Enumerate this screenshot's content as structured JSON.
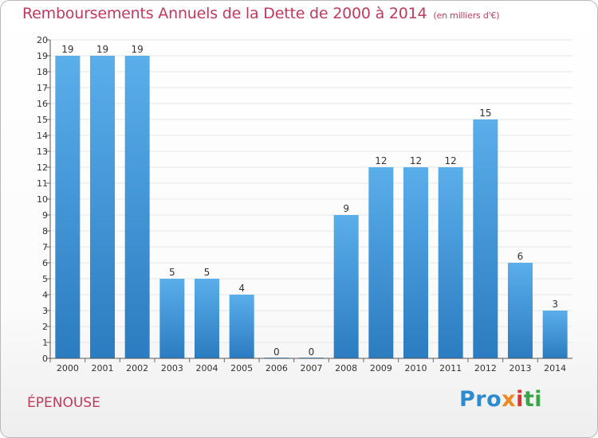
{
  "chart_data": {
    "type": "bar",
    "title": "Remboursements Annuels de la Dette de 2000 à 2014",
    "subtitle": "(en milliers d'€)",
    "categories": [
      "2000",
      "2001",
      "2002",
      "2003",
      "2004",
      "2005",
      "2006",
      "2007",
      "2008",
      "2009",
      "2010",
      "2011",
      "2012",
      "2013",
      "2014"
    ],
    "values": [
      19,
      19,
      19,
      5,
      5,
      4,
      0,
      0,
      9,
      12,
      12,
      12,
      15,
      6,
      3
    ],
    "ylim": [
      0,
      20
    ],
    "yticks": [
      0,
      1,
      2,
      3,
      4,
      5,
      6,
      7,
      8,
      9,
      10,
      11,
      12,
      13,
      14,
      15,
      16,
      17,
      18,
      19,
      20
    ],
    "xlabel": "",
    "ylabel": "",
    "bar_color": "#4da3e2",
    "bar_color_dark": "#2b7ec1"
  },
  "footer": {
    "place": "ÉPENOUSE",
    "logo": {
      "p1": "Pro",
      "p2": "x",
      "p3": "i",
      "p4": "ti"
    }
  },
  "colors": {
    "title": "#c2395b",
    "axis": "#555555"
  }
}
